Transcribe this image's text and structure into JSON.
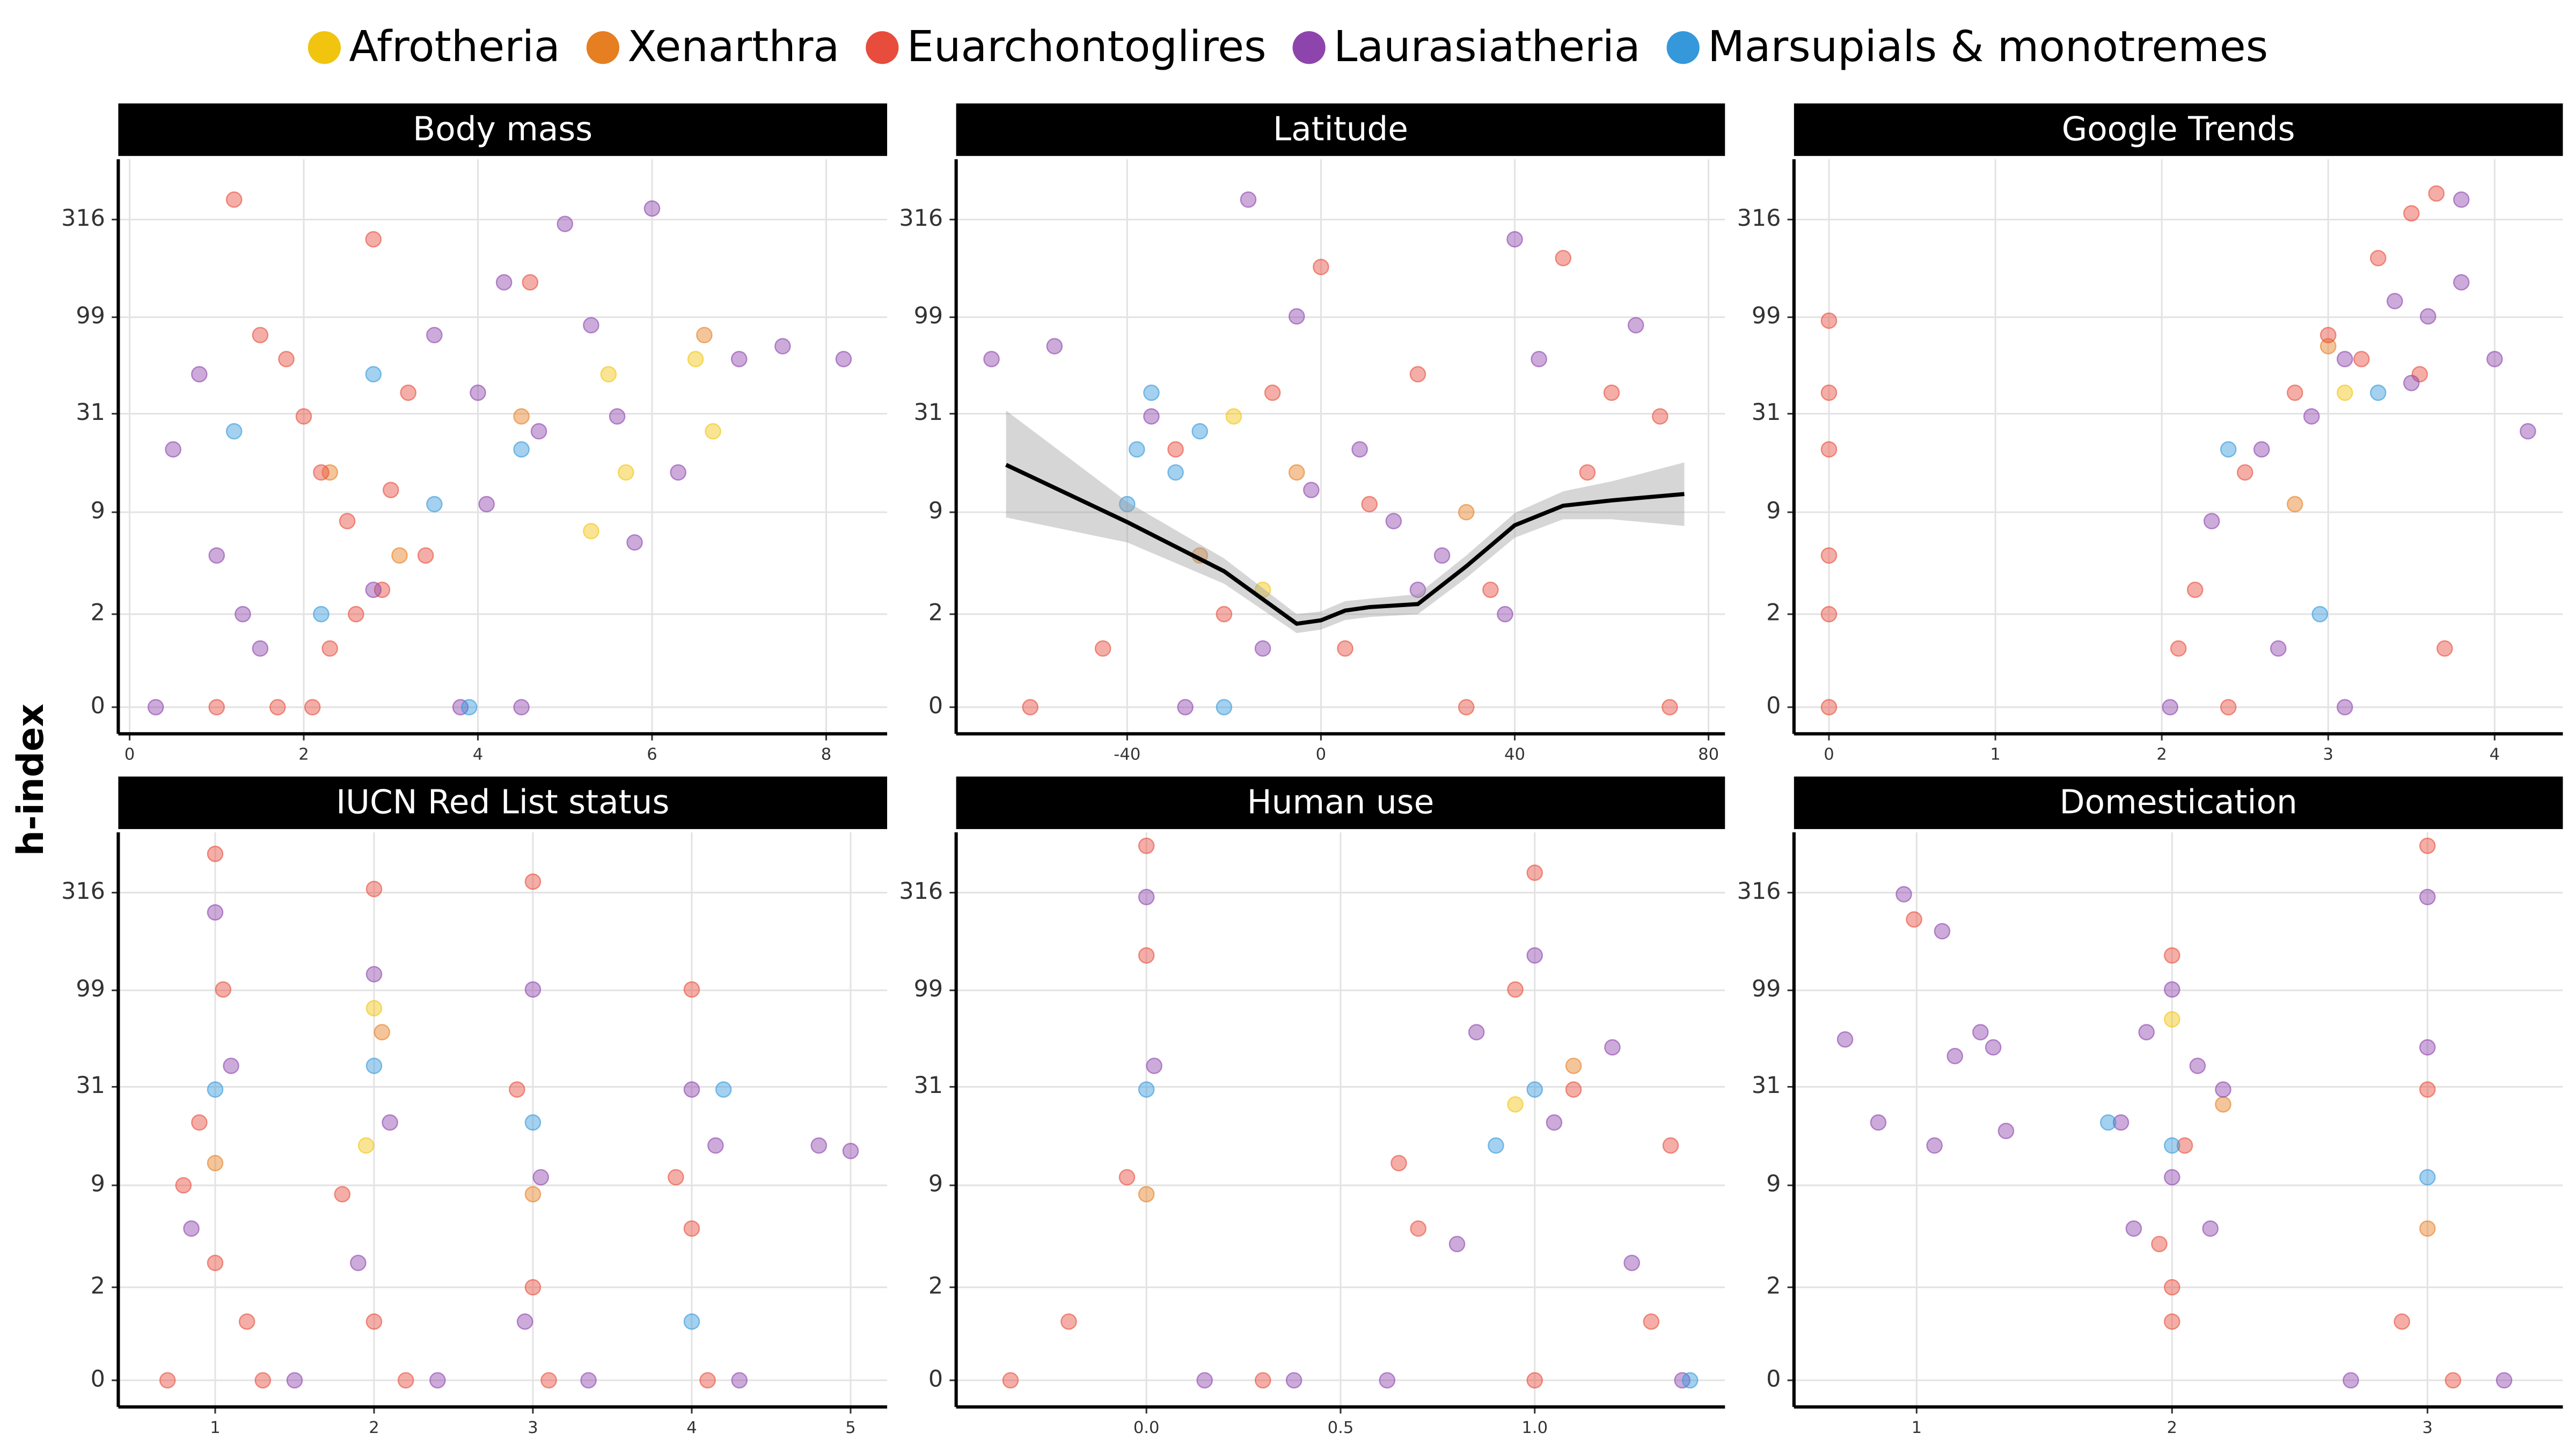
{
  "y_axis_label": "h-index",
  "legend": {
    "position": "top",
    "items": [
      {
        "name": "Afrotheria",
        "color": "#f1c40f"
      },
      {
        "name": "Xenarthra",
        "color": "#e67e22"
      },
      {
        "name": "Euarchontoglires",
        "color": "#e74c3c"
      },
      {
        "name": "Laurasiatheria",
        "color": "#8e44ad"
      },
      {
        "name": "Marsupials & monotremes",
        "color": "#3498db"
      }
    ]
  },
  "chart_data": [
    {
      "type": "scatter",
      "title": "Body mass",
      "yscale": "log1p",
      "grid": true,
      "xlim": [
        -0.13,
        8.7
      ],
      "xticks": [
        0,
        2,
        4,
        6,
        8
      ],
      "ylim": [
        -0.27,
        645
      ],
      "yticks": [
        0,
        2,
        9,
        31,
        99,
        316
      ],
      "series": [
        {
          "x": [
            5.5,
            6.5,
            5.3,
            5.7,
            6.7
          ],
          "values": [
            50,
            60,
            7,
            15,
            25
          ]
        },
        {
          "x": [
            2.3,
            3.1,
            4.5,
            6.6
          ],
          "values": [
            15,
            5,
            30,
            80
          ]
        },
        {
          "x": [
            1.2,
            1.5,
            1.8,
            2.0,
            2.2,
            2.5,
            2.8,
            3.0,
            1.0,
            2.3,
            2.6,
            3.4,
            1.7,
            2.1,
            2.9,
            3.2,
            4.6
          ],
          "values": [
            400,
            80,
            60,
            30,
            15,
            8,
            250,
            12,
            0,
            1,
            2,
            5,
            0,
            0,
            3,
            40,
            150
          ]
        },
        {
          "x": [
            0.5,
            0.8,
            1.0,
            1.3,
            3.5,
            4.0,
            4.3,
            4.7,
            5.0,
            5.3,
            5.6,
            6.0,
            6.3,
            7.0,
            7.5,
            8.2,
            4.5,
            3.8,
            0.3,
            1.5,
            2.8,
            5.8,
            4.1
          ],
          "values": [
            20,
            50,
            5,
            2,
            80,
            40,
            150,
            25,
            300,
            90,
            30,
            360,
            15,
            60,
            70,
            60,
            0,
            0,
            0,
            1,
            3,
            6,
            10
          ]
        },
        {
          "x": [
            1.2,
            2.8,
            3.5,
            4.5,
            3.9,
            2.2
          ],
          "values": [
            25,
            50,
            10,
            20,
            0,
            2
          ]
        }
      ]
    },
    {
      "type": "scatter",
      "title": "Latitude",
      "yscale": "log1p",
      "grid": true,
      "xlim": [
        -75.3,
        83.4
      ],
      "xticks": [
        -40,
        0,
        40,
        80
      ],
      "ylim": [
        -0.27,
        645
      ],
      "yticks": [
        0,
        2,
        9,
        31,
        99,
        316
      ],
      "series": [
        {
          "x": [
            -18,
            -12
          ],
          "values": [
            30,
            3
          ]
        },
        {
          "x": [
            -25,
            -5,
            30
          ],
          "values": [
            5,
            15,
            9
          ]
        },
        {
          "x": [
            -60,
            -30,
            -10,
            0,
            10,
            20,
            35,
            50,
            60,
            70,
            5,
            -20,
            30,
            -45,
            55,
            72
          ],
          "values": [
            0,
            20,
            40,
            180,
            10,
            50,
            3,
            200,
            40,
            30,
            1,
            2,
            0,
            1,
            15,
            0
          ]
        },
        {
          "x": [
            -68,
            -55,
            -35,
            -15,
            -5,
            8,
            15,
            25,
            40,
            45,
            65,
            -28,
            -12,
            38,
            20,
            -2
          ],
          "values": [
            60,
            70,
            30,
            400,
            100,
            20,
            8,
            5,
            250,
            60,
            90,
            0,
            1,
            2,
            3,
            12
          ]
        },
        {
          "x": [
            -38,
            -35,
            -30,
            -25,
            -40,
            -20
          ],
          "values": [
            20,
            40,
            15,
            25,
            10,
            0
          ]
        }
      ],
      "smooth": {
        "x": [
          -65,
          -40,
          -20,
          -5,
          0,
          5,
          10,
          20,
          30,
          40,
          50,
          60,
          75
        ],
        "values": [
          16.5,
          7.9,
          3.98,
          1.68,
          1.79,
          2.13,
          2.26,
          2.38,
          4.28,
          7.57,
          9.8,
          10.5,
          11.4
        ],
        "lower": [
          8.4,
          6.0,
          3.3,
          1.4,
          1.5,
          1.8,
          1.9,
          2.0,
          3.6,
          6.4,
          8.2,
          8.2,
          7.5
        ],
        "upper": [
          32.2,
          10.3,
          4.8,
          2.0,
          2.1,
          2.5,
          2.6,
          2.8,
          5.0,
          8.9,
          11.8,
          13.4,
          17.0
        ]
      }
    },
    {
      "type": "scatter",
      "title": "Google Trends",
      "yscale": "log1p",
      "grid": true,
      "xlim": [
        -0.21,
        4.41
      ],
      "xticks": [
        0,
        1,
        2,
        3,
        4
      ],
      "ylim": [
        -0.27,
        645
      ],
      "yticks": [
        0,
        2,
        9,
        31,
        99,
        316
      ],
      "series": [
        {
          "x": [
            3.1
          ],
          "values": [
            40
          ]
        },
        {
          "x": [
            2.8,
            3.0
          ],
          "values": [
            10,
            70
          ]
        },
        {
          "x": [
            0,
            0,
            0,
            0,
            0,
            0,
            2.2,
            2.5,
            2.8,
            3.0,
            3.3,
            3.5,
            3.65,
            3.2,
            2.4,
            2.1,
            3.7,
            3.55
          ],
          "values": [
            0,
            2,
            5,
            20,
            40,
            95,
            3,
            15,
            40,
            80,
            200,
            340,
            430,
            60,
            0,
            1,
            1,
            50
          ]
        },
        {
          "x": [
            2.6,
            2.9,
            3.1,
            3.4,
            3.6,
            3.8,
            4.0,
            4.2,
            2.3,
            2.7,
            3.5,
            3.1,
            2.05,
            3.8
          ],
          "values": [
            20,
            30,
            60,
            120,
            100,
            400,
            60,
            25,
            8,
            1,
            45,
            0,
            0,
            150
          ]
        },
        {
          "x": [
            2.4,
            2.95,
            3.3
          ],
          "values": [
            20,
            2,
            40
          ]
        }
      ]
    },
    {
      "type": "scatter",
      "title": "IUCN Red List status",
      "yscale": "log1p",
      "grid": true,
      "xlim": [
        0.39,
        5.23
      ],
      "xticks": [
        1,
        2,
        3,
        4,
        5
      ],
      "ylim": [
        -0.27,
        645
      ],
      "yticks": [
        0,
        2,
        9,
        31,
        99,
        316
      ],
      "series": [
        {
          "x": [
            2.0,
            1.95
          ],
          "values": [
            80,
            15
          ]
        },
        {
          "x": [
            1.0,
            2.05,
            3.0
          ],
          "values": [
            12,
            60,
            8
          ]
        },
        {
          "x": [
            1.0,
            1.05,
            0.9,
            0.7,
            1.3,
            2.0,
            1.8,
            2.2,
            3.0,
            2.9,
            3.1,
            4.0,
            3.9,
            4.1,
            1.0,
            2.0,
            3.0,
            4.0,
            1.2,
            0.8
          ],
          "values": [
            500,
            100,
            20,
            0,
            0,
            330,
            8,
            0,
            360,
            30,
            0,
            100,
            10,
            0,
            3,
            1,
            2,
            5,
            1,
            9
          ]
        },
        {
          "x": [
            1.0,
            1.1,
            0.85,
            2.0,
            2.1,
            1.9,
            3.0,
            3.05,
            2.95,
            4.0,
            4.15,
            4.8,
            5.0,
            1.5,
            2.4,
            3.35,
            4.3
          ],
          "values": [
            250,
            40,
            5,
            120,
            20,
            3,
            100,
            10,
            1,
            30,
            15,
            15,
            14,
            0,
            0,
            0,
            0
          ]
        },
        {
          "x": [
            1.0,
            2.0,
            3.0,
            4.2,
            4.0
          ],
          "values": [
            30,
            40,
            20,
            30,
            1
          ]
        }
      ]
    },
    {
      "type": "scatter",
      "title": "Human use",
      "yscale": "log1p",
      "grid": true,
      "xlim": [
        -0.49,
        1.49
      ],
      "xticks": [
        {
          "value": 0,
          "label": "0.0"
        },
        {
          "value": 0.5,
          "label": "0.5"
        },
        {
          "value": 1,
          "label": "1.0"
        }
      ],
      "ylim": [
        -0.27,
        645
      ],
      "yticks": [
        0,
        2,
        9,
        31,
        99,
        316
      ],
      "series": [
        {
          "x": [
            0.95
          ],
          "values": [
            25
          ]
        },
        {
          "x": [
            0.0,
            1.1
          ],
          "values": [
            8,
            40
          ]
        },
        {
          "x": [
            0.0,
            0.0,
            -0.05,
            -0.2,
            -0.35,
            0.3,
            1.0,
            0.95,
            1.1,
            0.7,
            1.3,
            1.0,
            0.65,
            1.35
          ],
          "values": [
            550,
            150,
            10,
            1,
            0,
            0,
            400,
            100,
            30,
            5,
            1,
            0,
            12,
            15
          ]
        },
        {
          "x": [
            0.0,
            0.02,
            0.15,
            0.38,
            1.0,
            0.85,
            1.2,
            1.05,
            0.62,
            1.38,
            0.8,
            1.25
          ],
          "values": [
            300,
            40,
            0,
            0,
            150,
            60,
            50,
            20,
            0,
            0,
            4,
            3
          ]
        },
        {
          "x": [
            0.0,
            1.0,
            0.9,
            1.4
          ],
          "values": [
            30,
            30,
            15,
            0
          ]
        }
      ]
    },
    {
      "type": "scatter",
      "title": "Domestication",
      "yscale": "log1p",
      "grid": true,
      "xlim": [
        0.52,
        3.53
      ],
      "xticks": [
        1,
        2,
        3
      ],
      "ylim": [
        -0.27,
        645
      ],
      "yticks": [
        0,
        2,
        9,
        31,
        99,
        316
      ],
      "series": [
        {
          "x": [
            2.0
          ],
          "values": [
            70
          ]
        },
        {
          "x": [
            2.2,
            3.0
          ],
          "values": [
            25,
            5
          ]
        },
        {
          "x": [
            0.99,
            2.0,
            2.0,
            1.95,
            2.05,
            3.0,
            3.0,
            2.9,
            3.1,
            2.0
          ],
          "values": [
            230,
            150,
            2,
            4,
            15,
            550,
            30,
            1,
            0,
            1
          ]
        },
        {
          "x": [
            0.72,
            0.95,
            1.15,
            1.25,
            1.3,
            0.85,
            1.1,
            1.07,
            1.35,
            2.0,
            1.9,
            2.1,
            2.2,
            1.8,
            2.0,
            1.85,
            2.15,
            3.0,
            3.0,
            2.7,
            3.3
          ],
          "values": [
            55,
            310,
            45,
            60,
            50,
            20,
            200,
            15,
            18,
            100,
            60,
            40,
            30,
            20,
            10,
            5,
            5,
            300,
            50,
            0,
            0
          ]
        },
        {
          "x": [
            2.0,
            1.75,
            3.0
          ],
          "values": [
            15,
            20,
            10
          ]
        }
      ]
    }
  ]
}
